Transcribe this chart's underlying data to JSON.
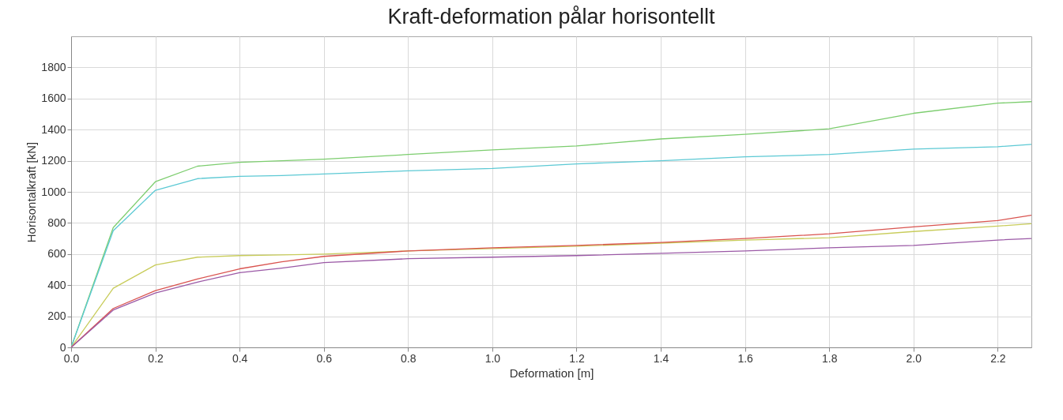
{
  "chart_data": {
    "type": "line",
    "title": "Kraft-deformation pålar horisontellt",
    "xlabel": "Deformation [m]",
    "ylabel": "Horisontalkraft [kN]",
    "x": [
      0,
      0.1,
      0.2,
      0.3,
      0.4,
      0.5,
      0.6,
      0.8,
      1.0,
      1.2,
      1.4,
      1.6,
      1.8,
      2.0,
      2.2,
      2.28
    ],
    "xlim": [
      0,
      2.28
    ],
    "xticks": [
      {
        "value": 0,
        "label": "0.0"
      },
      {
        "value": 0.2,
        "label": "0.2"
      },
      {
        "value": 0.4,
        "label": "0.4"
      },
      {
        "value": 0.6,
        "label": "0.6"
      },
      {
        "value": 0.8,
        "label": "0.8"
      },
      {
        "value": 1,
        "label": "1.0"
      },
      {
        "value": 1.2,
        "label": "1.2"
      },
      {
        "value": 1.4,
        "label": "1.4"
      },
      {
        "value": 1.6,
        "label": "1.6"
      },
      {
        "value": 1.8,
        "label": "1.8"
      },
      {
        "value": 2,
        "label": "2.0"
      },
      {
        "value": 2.2,
        "label": "2.2"
      }
    ],
    "ylim": [
      0,
      2000
    ],
    "yticks": [
      0,
      200,
      400,
      600,
      800,
      1000,
      1200,
      1400,
      1600,
      1800
    ],
    "grid": true,
    "series": [
      {
        "color": "#7ccd6e",
        "values": [
          0,
          770,
          1065,
          1165,
          1190,
          1200,
          1210,
          1240,
          1270,
          1295,
          1340,
          1370,
          1405,
          1505,
          1570,
          1580
        ]
      },
      {
        "color": "#5cc9d4",
        "values": [
          0,
          750,
          1010,
          1085,
          1100,
          1105,
          1115,
          1135,
          1150,
          1180,
          1200,
          1225,
          1240,
          1275,
          1290,
          1305
        ]
      },
      {
        "color": "#c8cc5a",
        "values": [
          0,
          380,
          530,
          580,
          590,
          595,
          600,
          620,
          635,
          650,
          670,
          690,
          705,
          745,
          780,
          795
        ]
      },
      {
        "color": "#d9534f",
        "values": [
          0,
          250,
          365,
          440,
          505,
          550,
          585,
          620,
          640,
          655,
          675,
          700,
          730,
          775,
          815,
          850
        ]
      },
      {
        "color": "#9b59a6",
        "values": [
          0,
          240,
          350,
          420,
          480,
          510,
          545,
          570,
          580,
          590,
          605,
          620,
          640,
          655,
          690,
          700
        ]
      }
    ]
  }
}
